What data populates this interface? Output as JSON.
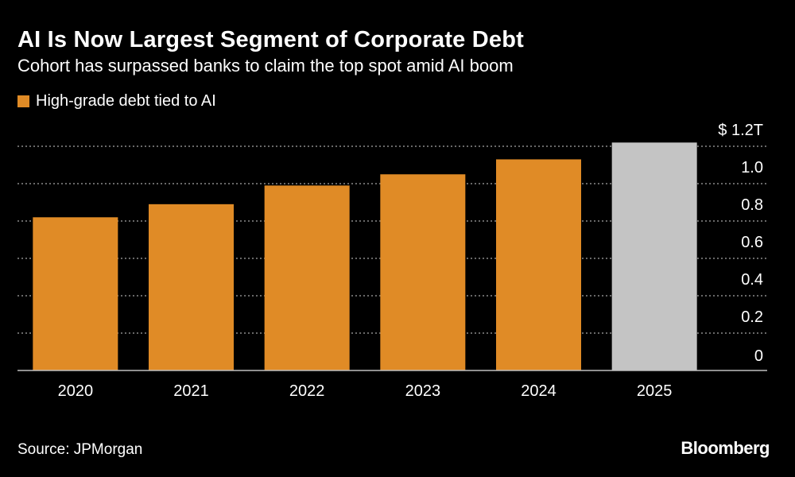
{
  "header": {
    "title": "AI Is Now Largest Segment of Corporate Debt",
    "subtitle": "Cohort has surpassed banks to claim the top spot amid AI boom"
  },
  "legend": {
    "label": "High-grade debt tied to AI",
    "color": "#e08b26"
  },
  "chart_data": {
    "type": "bar",
    "categories": [
      "2020",
      "2021",
      "2022",
      "2023",
      "2024",
      "2025"
    ],
    "series": [
      {
        "values": [
          0.82,
          0.89,
          0.99,
          1.05,
          1.13,
          1.22
        ]
      }
    ],
    "bar_colors": [
      "#e08b26",
      "#e08b26",
      "#e08b26",
      "#e08b26",
      "#e08b26",
      "#c4c4c4"
    ],
    "ylim": [
      0,
      1.2
    ],
    "yticks": [
      0,
      0.2,
      0.4,
      0.6,
      0.8,
      1.0,
      1.2
    ],
    "ytick_labels": [
      "0",
      "0.2",
      "0.4",
      "0.6",
      "0.8",
      "1.0",
      "$ 1.2T"
    ],
    "grid": true,
    "grid_color": "#8a8a8a",
    "axis_position": "right",
    "legend_position": "top-left"
  },
  "footer": {
    "source": "Source: JPMorgan",
    "logo": "Bloomberg"
  }
}
